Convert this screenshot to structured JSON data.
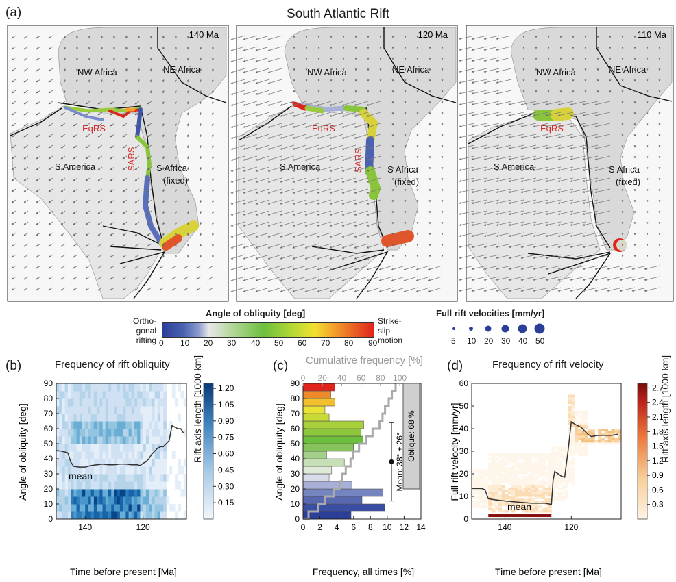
{
  "figure": {
    "title": "South Atlantic Rift",
    "panel_labels": [
      "(a)",
      "(b)",
      "(c)",
      "(d)"
    ]
  },
  "maps": [
    {
      "age": "140 Ma",
      "labels": [
        "NW Africa",
        "NE Africa",
        "EqRS",
        "S America",
        "SARS",
        "S Africa",
        "(fixed)"
      ]
    },
    {
      "age": "120 Ma",
      "labels": [
        "NW Africa",
        "NE Africa",
        "EqRS",
        "S America",
        "SARS",
        "S Africa",
        "(fixed)"
      ]
    },
    {
      "age": "110 Ma",
      "labels": [
        "NW Africa",
        "NE Africa",
        "EqRS",
        "S America",
        "S Africa",
        "(fixed)"
      ]
    }
  ],
  "legend": {
    "obliquity_title": "Angle of obliquity [deg]",
    "left_label": [
      "Ortho-",
      "gonal",
      "rifting"
    ],
    "right_label": [
      "Strike-",
      "slip",
      "motion"
    ],
    "ticks": [
      "0",
      "10",
      "20",
      "30",
      "40",
      "50",
      "60",
      "70",
      "80",
      "90"
    ],
    "velocity_title": "Full rift velocities [mm/yr]",
    "velocity_values": [
      "5",
      "10",
      "20",
      "30",
      "40",
      "50"
    ],
    "colors": {
      "blue": "#2b3f99",
      "white": "#e8e8e8",
      "green": "#6cbf3c",
      "yellow": "#f2e030",
      "red": "#e0241c"
    }
  },
  "panel_b": {
    "title": "Frequency of rift obliquity",
    "xlabel": "Time before present [Ma]",
    "ylabel": "Angle of obliquity [deg]",
    "colorbar_label": "Rift axis length [1000 km]",
    "mean_label": "mean"
  },
  "panel_c": {
    "top_label": "Cumulative frequency [%]",
    "xlabel": "Frequency, all times [%]",
    "ylabel": "Angle of obliquity [deg]",
    "mean_text": "Mean: 38° ± 26°",
    "oblique_text": "Oblique: 68 %"
  },
  "panel_d": {
    "title": "Frequency of rift velocity",
    "xlabel": "Time before present [Ma]",
    "ylabel": "Full rift velocity [mm/yr]",
    "colorbar_label": "Rift axis length [1000 km]",
    "mean_label": "mean"
  },
  "chart_data": [
    {
      "type": "heatmap",
      "panel": "b",
      "x_ticks": [
        "140",
        "120"
      ],
      "x_range_ma": [
        150,
        105
      ],
      "y_ticks": [
        "0",
        "10",
        "20",
        "30",
        "40",
        "50",
        "60",
        "70",
        "80",
        "90"
      ],
      "ylim": [
        0,
        90
      ],
      "colorbar_ticks": [
        "0.15",
        "0.30",
        "0.45",
        "0.60",
        "0.75",
        "0.90",
        "1.05",
        "1.20"
      ],
      "mean_series": {
        "name": "mean",
        "x": [
          150,
          148,
          146,
          145,
          144,
          142,
          140,
          138,
          136,
          134,
          132,
          130,
          128,
          126,
          124,
          122,
          121,
          120,
          119,
          118,
          117,
          116,
          115,
          114,
          113,
          112,
          111,
          110,
          109,
          108,
          107,
          106
        ],
        "y": [
          45.5,
          45,
          44,
          38,
          35,
          34.5,
          34.5,
          35.5,
          36,
          36.5,
          36,
          36,
          36.5,
          36.5,
          36,
          36,
          35.5,
          37,
          38,
          40,
          43,
          45,
          47,
          48,
          48,
          50,
          52,
          62,
          61,
          60,
          60,
          57
        ]
      }
    },
    {
      "type": "bar",
      "panel": "c",
      "orientation": "horizontal",
      "bin_edges": [
        0,
        5,
        10,
        15,
        20,
        25,
        30,
        35,
        40,
        45,
        50,
        55,
        60,
        65,
        70,
        75,
        80,
        85,
        90
      ],
      "frequency_percent": [
        5.7,
        9.7,
        7.0,
        9.5,
        5.8,
        3.1,
        3.4,
        4.9,
        2.8,
        6.0,
        7.1,
        6.9,
        7.2,
        3.1,
        2.6,
        3.8,
        3.3,
        3.8
      ],
      "cumulative_percent": [
        5.7,
        15.4,
        22.4,
        31.9,
        37.7,
        40.8,
        44.2,
        49.1,
        51.9,
        57.9,
        65.0,
        71.9,
        79.1,
        82.2,
        84.8,
        88.6,
        91.9,
        95.7
      ],
      "x_ticks": [
        "0",
        "2",
        "4",
        "6",
        "8",
        "10",
        "12",
        "14"
      ],
      "xlim": [
        0,
        14
      ],
      "top_ticks": [
        "0",
        "20",
        "40",
        "60",
        "80",
        "100"
      ],
      "y_ticks": [
        "0",
        "10",
        "20",
        "30",
        "40",
        "50",
        "60",
        "70",
        "80",
        "90"
      ],
      "ylim": [
        0,
        90
      ],
      "mean": 38,
      "std": 26,
      "oblique_range_deg": [
        20,
        90
      ]
    },
    {
      "type": "heatmap",
      "panel": "d",
      "x_ticks": [
        "140",
        "120"
      ],
      "x_range_ma": [
        150,
        105
      ],
      "y_ticks": [
        "0",
        "10",
        "20",
        "30",
        "40",
        "50",
        "60"
      ],
      "ylim": [
        0,
        60
      ],
      "colorbar_ticks": [
        "0.3",
        "0.6",
        "0.9",
        "1.2",
        "1.5",
        "1.8",
        "2.1",
        "2.4",
        "2.7"
      ],
      "mean_series": {
        "name": "mean",
        "x": [
          150,
          147,
          146,
          145,
          143,
          140,
          136,
          132,
          128,
          126,
          125.5,
          125,
          123,
          122,
          121,
          120,
          119,
          117,
          116,
          115,
          114,
          112,
          110,
          108,
          106
        ],
        "y": [
          13.5,
          13.5,
          13,
          9,
          8.5,
          8,
          7.5,
          7,
          7,
          6.5,
          17,
          21,
          19,
          18.5,
          30,
          43,
          42,
          40.5,
          39,
          37.5,
          36.5,
          37,
          37,
          37,
          37.5
        ]
      },
      "highlight_bar": {
        "x_range_ma": [
          145,
          126
        ],
        "y": 1.5
      }
    }
  ]
}
